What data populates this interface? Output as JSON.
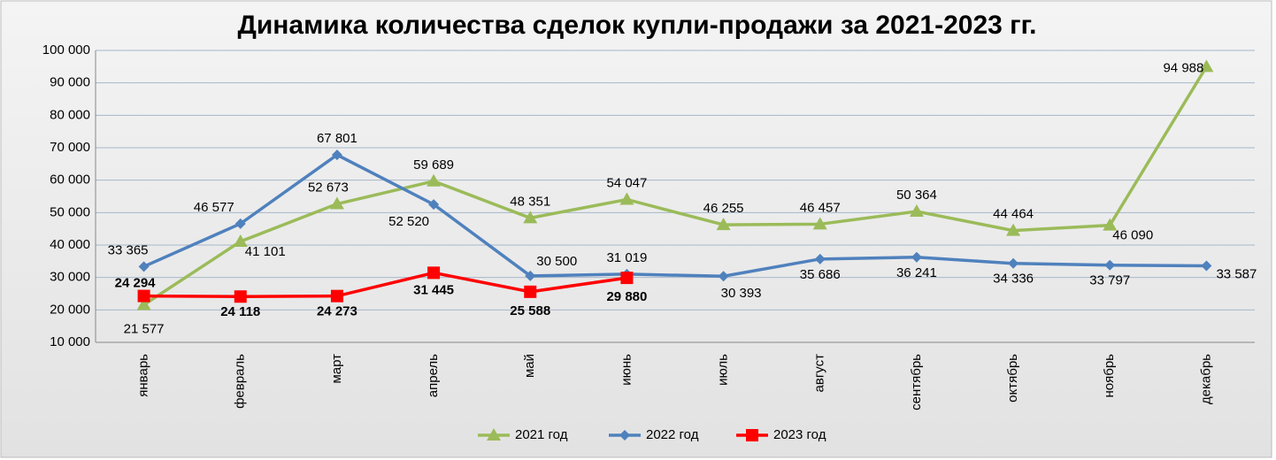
{
  "chart_data": {
    "type": "line",
    "title": "Динамика количества сделок купли-продажи за 2021-2023 гг.",
    "categories": [
      "январь",
      "февраль",
      "март",
      "апрель",
      "май",
      "июнь",
      "июль",
      "август",
      "сентябрь",
      "октябрь",
      "ноябрь",
      "декабрь"
    ],
    "series": [
      {
        "name": "2021 год",
        "color": "#9bbb59",
        "marker": "triangle",
        "values": [
          21577,
          41101,
          52673,
          59689,
          48351,
          54047,
          46255,
          46457,
          50364,
          44464,
          46090,
          94988
        ],
        "value_labels": [
          "21 577",
          "41 101",
          "52 673",
          "59 689",
          "48 351",
          "54 047",
          "46 255",
          "46 457",
          "50 364",
          "44 464",
          "46 090",
          "94 988"
        ]
      },
      {
        "name": "2022 год",
        "color": "#4f81bd",
        "marker": "diamond",
        "values": [
          33365,
          46577,
          67801,
          52520,
          30500,
          31019,
          30393,
          35686,
          36241,
          34336,
          33797,
          33587
        ],
        "value_labels": [
          "33 365",
          "46 577",
          "67 801",
          "52 520",
          "30 500",
          "31 019",
          "30 393",
          "35 686",
          "36 241",
          "34 336",
          "33 797",
          "33 587"
        ]
      },
      {
        "name": "2023 год",
        "color": "#ff0000",
        "marker": "square",
        "values": [
          24294,
          24118,
          24273,
          31445,
          25588,
          29880,
          null,
          null,
          null,
          null,
          null,
          null
        ],
        "value_labels": [
          "24 294",
          "24 118",
          "24 273",
          "31 445",
          "25 588",
          "29 880",
          null,
          null,
          null,
          null,
          null,
          null
        ]
      }
    ],
    "ylim": [
      10000,
      100000
    ],
    "yticks": [
      {
        "value": 10000,
        "label": "10 000"
      },
      {
        "value": 20000,
        "label": "20 000"
      },
      {
        "value": 30000,
        "label": "30 000"
      },
      {
        "value": 40000,
        "label": "40 000"
      },
      {
        "value": 50000,
        "label": "50 000"
      },
      {
        "value": 60000,
        "label": "60 000"
      },
      {
        "value": 70000,
        "label": "70 000"
      },
      {
        "value": 80000,
        "label": "80 000"
      },
      {
        "value": 90000,
        "label": "90 000"
      },
      {
        "value": 100000,
        "label": "100 000"
      }
    ],
    "grid": true,
    "legend": "bottom"
  }
}
